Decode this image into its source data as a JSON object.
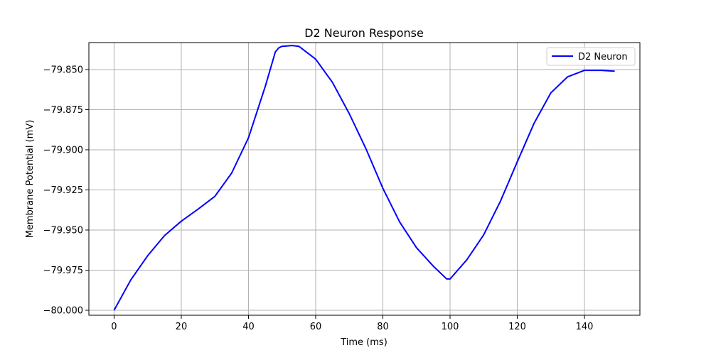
{
  "chart_data": {
    "type": "line",
    "title": "D2 Neuron Response",
    "xlabel": "Time (ms)",
    "ylabel": "Membrane Potential (mV)",
    "xlim": [
      -7.5,
      156.5
    ],
    "ylim": [
      -80.0031,
      -79.8332
    ],
    "xticks": [
      0,
      20,
      40,
      60,
      80,
      100,
      120,
      140
    ],
    "xtick_labels": [
      "0",
      "20",
      "40",
      "60",
      "80",
      "100",
      "120",
      "140"
    ],
    "yticks": [
      -80.0,
      -79.975,
      -79.95,
      -79.925,
      -79.9,
      -79.875,
      -79.85
    ],
    "ytick_labels": [
      "−80.000",
      "−79.975",
      "−79.950",
      "−79.925",
      "−79.900",
      "−79.875",
      "−79.850"
    ],
    "grid": true,
    "legend_position": "top-right",
    "series": [
      {
        "name": "D2 Neuron",
        "color": "#0000ff",
        "x": [
          0,
          5,
          10,
          15,
          20,
          25,
          30,
          35,
          40,
          45,
          48,
          49,
          50,
          53,
          55,
          60,
          65,
          70,
          75,
          80,
          85,
          90,
          95,
          99,
          100,
          105,
          110,
          115,
          120,
          125,
          130,
          135,
          140,
          145,
          149
        ],
        "y": [
          -80.0,
          -79.981,
          -79.966,
          -79.9535,
          -79.9445,
          -79.937,
          -79.929,
          -79.9145,
          -79.8925,
          -79.8605,
          -79.839,
          -79.8365,
          -79.8355,
          -79.835,
          -79.8355,
          -79.8435,
          -79.858,
          -79.8775,
          -79.8995,
          -79.924,
          -79.945,
          -79.961,
          -79.9725,
          -79.9805,
          -79.9805,
          -79.9685,
          -79.953,
          -79.932,
          -79.9075,
          -79.8835,
          -79.8645,
          -79.8545,
          -79.8505,
          -79.8505,
          -79.851
        ]
      }
    ]
  }
}
